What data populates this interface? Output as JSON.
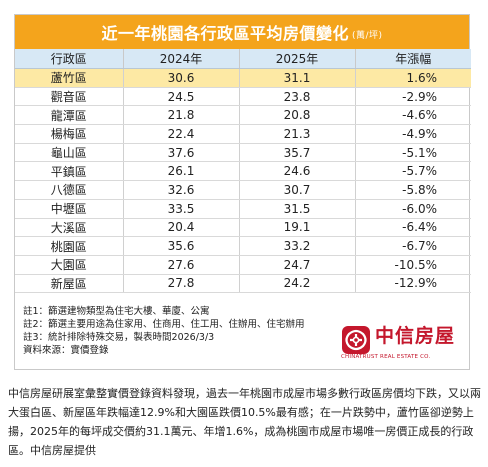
{
  "table": {
    "title": "近一年桃園各行政區平均房價變化",
    "unit": "(萬/坪)",
    "headers": [
      "行政區",
      "2024年",
      "2025年",
      "年漲幅"
    ],
    "rows": [
      {
        "district": "蘆竹區",
        "y2024": "30.6",
        "y2025": "31.1",
        "change": "1.6%"
      },
      {
        "district": "觀音區",
        "y2024": "24.5",
        "y2025": "23.8",
        "change": "-2.9%"
      },
      {
        "district": "龍潭區",
        "y2024": "21.8",
        "y2025": "20.8",
        "change": "-4.6%"
      },
      {
        "district": "楊梅區",
        "y2024": "22.4",
        "y2025": "21.3",
        "change": "-4.9%"
      },
      {
        "district": "龜山區",
        "y2024": "37.6",
        "y2025": "35.7",
        "change": "-5.1%"
      },
      {
        "district": "平鎮區",
        "y2024": "26.1",
        "y2025": "24.6",
        "change": "-5.7%"
      },
      {
        "district": "八德區",
        "y2024": "32.6",
        "y2025": "30.7",
        "change": "-5.8%"
      },
      {
        "district": "中壢區",
        "y2024": "33.5",
        "y2025": "31.5",
        "change": "-6.0%"
      },
      {
        "district": "大溪區",
        "y2024": "20.4",
        "y2025": "19.1",
        "change": "-6.4%"
      },
      {
        "district": "桃園區",
        "y2024": "35.6",
        "y2025": "33.2",
        "change": "-6.7%"
      },
      {
        "district": "大園區",
        "y2024": "27.6",
        "y2025": "24.7",
        "change": "-10.5%"
      },
      {
        "district": "新屋區",
        "y2024": "27.8",
        "y2025": "24.2",
        "change": "-12.9%"
      }
    ],
    "highlight_color": "#fde9a4",
    "title_bar_color": "#f4a41c",
    "header_color": "#d7e8f5"
  },
  "notes": [
    "註1：篩選建物類型為住宅大樓、華廈、公寓",
    "註2：篩選主要用途為住家用、住商用、住工用、住辦用、住宅辦用",
    "註3：統計排除特殊交易，製表時間2026/3/3",
    "資料來源：實價登錄"
  ],
  "logo": {
    "name": "中信房屋",
    "english": "CHINATRUST REAL ESTATE CO.",
    "icon": "chinatrust-knot-logo-icon",
    "color": "#c4172c"
  },
  "caption": "中信房屋研展室彙整實價登錄資料發現，過去一年桃園市成屋市場多數行政區房價均下跌，又以兩大蛋白區、新屋區年跌幅達12.9%和大園區跌價10.5%最有感；在一片跌勢中，蘆竹區卻逆勢上揚，2025年的每坪成交價約31.1萬元、年增1.6%，成為桃園市成屋市場唯一房價正成長的行政區。中信房屋提供"
}
